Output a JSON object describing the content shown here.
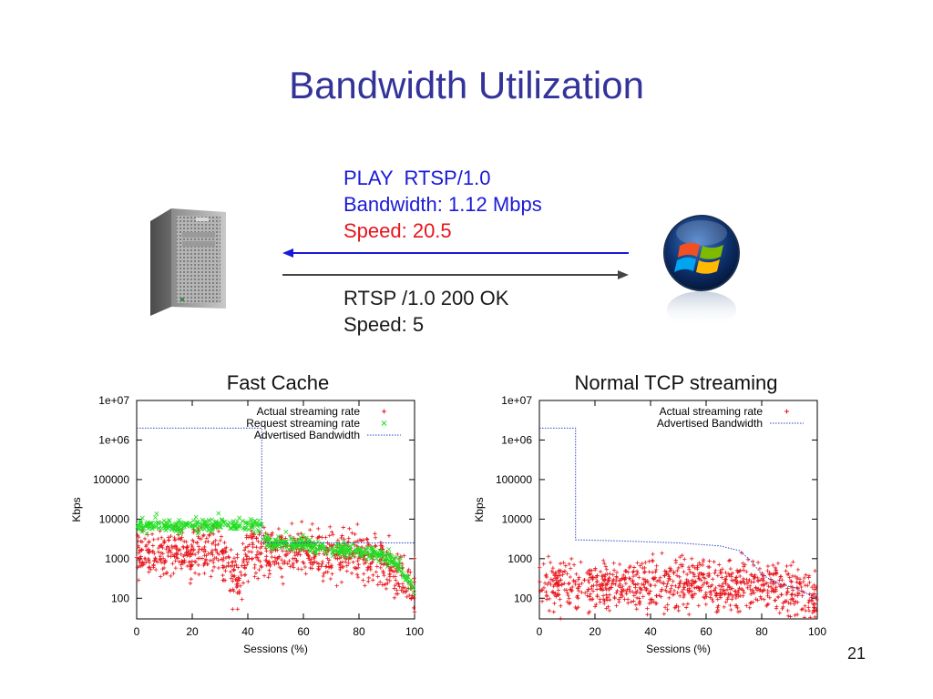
{
  "slide": {
    "title": "Bandwidth Utilization",
    "page_number": "21"
  },
  "request": {
    "line1": "PLAY  RTSP/1.0",
    "line2": "Bandwidth: 1.12 Mbps",
    "line3": "Speed: 20.5"
  },
  "response": {
    "line1": "RTSP /1.0 200 OK",
    "line2": "Speed: 5"
  },
  "colors": {
    "title": "#333399",
    "request_text": "#1a1ad6",
    "speed_text": "#e8141b",
    "actual_rate": "#e8141b",
    "request_rate": "#22dd22",
    "advertised": "#3344cc"
  },
  "icons": [
    "server-tower-icon",
    "windows-logo-icon",
    "arrow-left-icon",
    "arrow-right-icon"
  ],
  "chart_data": [
    {
      "type": "scatter",
      "title": "Fast Cache",
      "xlabel": "Sessions (%)",
      "ylabel": "Kbps",
      "yscale": "log",
      "xlim": [
        0,
        100
      ],
      "ylim": [
        30,
        10000000
      ],
      "x_ticks": [
        0,
        20,
        40,
        60,
        80,
        100
      ],
      "y_ticks": [
        {
          "value": 100,
          "label": "100"
        },
        {
          "value": 1000,
          "label": "1000"
        },
        {
          "value": 10000,
          "label": "10000"
        },
        {
          "value": 100000,
          "label": "100000"
        },
        {
          "value": 1000000,
          "label": "1e+06"
        },
        {
          "value": 10000000,
          "label": "1e+07"
        }
      ],
      "legend_position": "top-right",
      "grid": false,
      "series": [
        {
          "name": "Actual streaming rate",
          "marker": "+",
          "color": "#e8141b",
          "profile": [
            [
              0,
              1300
            ],
            [
              10,
              1300
            ],
            [
              20,
              1400
            ],
            [
              30,
              1500
            ],
            [
              35,
              350
            ],
            [
              38,
              350
            ],
            [
              40,
              1500
            ],
            [
              45,
              1550
            ],
            [
              46,
              1700
            ],
            [
              60,
              1600
            ],
            [
              70,
              1400
            ],
            [
              80,
              1100
            ],
            [
              88,
              900
            ],
            [
              92,
              600
            ],
            [
              96,
              300
            ],
            [
              100,
              150
            ]
          ]
        },
        {
          "name": "Request streaming rate",
          "marker": "x",
          "color": "#22dd22",
          "profile": [
            [
              0,
              7000
            ],
            [
              45,
              7000
            ],
            [
              45.5,
              2700
            ],
            [
              55,
              2300
            ],
            [
              65,
              2000
            ],
            [
              75,
              1700
            ],
            [
              85,
              1300
            ],
            [
              90,
              1000
            ],
            [
              94,
              700
            ],
            [
              97,
              350
            ],
            [
              100,
              150
            ]
          ]
        },
        {
          "name": "Advertised Bandwidth",
          "marker": "dotted-line",
          "color": "#3344cc",
          "profile": [
            [
              0,
              2000000
            ],
            [
              45,
              2000000
            ],
            [
              45,
              2500
            ],
            [
              100,
              2500
            ]
          ]
        }
      ]
    },
    {
      "type": "scatter",
      "title": "Normal TCP streaming",
      "xlabel": "Sessions (%)",
      "ylabel": "Kbps",
      "yscale": "log",
      "xlim": [
        0,
        100
      ],
      "ylim": [
        30,
        10000000
      ],
      "x_ticks": [
        0,
        20,
        40,
        60,
        80,
        100
      ],
      "y_ticks": [
        {
          "value": 100,
          "label": "100"
        },
        {
          "value": 1000,
          "label": "1000"
        },
        {
          "value": 10000,
          "label": "10000"
        },
        {
          "value": 100000,
          "label": "100000"
        },
        {
          "value": 1000000,
          "label": "1e+06"
        },
        {
          "value": 10000000,
          "label": "1e+07"
        }
      ],
      "legend_position": "top-right",
      "grid": false,
      "series": [
        {
          "name": "Actual streaming rate",
          "marker": "+",
          "color": "#e8141b",
          "profile": [
            [
              0,
              200
            ],
            [
              20,
              210
            ],
            [
              40,
              220
            ],
            [
              60,
              220
            ],
            [
              75,
              220
            ],
            [
              85,
              180
            ],
            [
              95,
              130
            ],
            [
              100,
              110
            ]
          ]
        },
        {
          "name": "Advertised Bandwidth",
          "marker": "dotted-line",
          "color": "#3344cc",
          "profile": [
            [
              0,
              2000000
            ],
            [
              13,
              2000000
            ],
            [
              13,
              3000
            ],
            [
              30,
              2800
            ],
            [
              50,
              2500
            ],
            [
              65,
              2100
            ],
            [
              72,
              1600
            ],
            [
              76,
              900
            ],
            [
              80,
              400
            ],
            [
              85,
              250
            ],
            [
              92,
              180
            ],
            [
              100,
              100
            ]
          ]
        }
      ]
    }
  ]
}
